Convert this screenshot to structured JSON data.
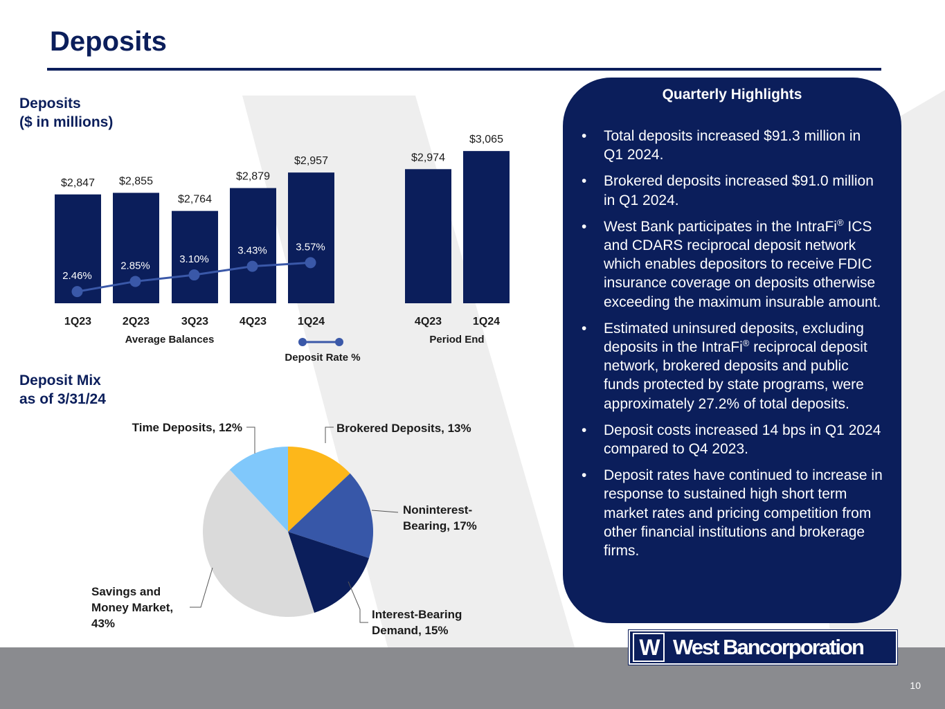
{
  "page": {
    "title": "Deposits",
    "page_number": "10"
  },
  "colors": {
    "navy": "#0b1e5b",
    "line_blue": "#3a58a8",
    "gray_band": "#8a8b8f",
    "watermark": "#eeeeee"
  },
  "deposits_section": {
    "title_line1": "Deposits",
    "title_line2": "($ in millions)"
  },
  "mix_section": {
    "title_line1": "Deposit Mix",
    "title_line2": "as of 3/31/24"
  },
  "highlights": {
    "title": "Quarterly Highlights",
    "bullet_glyph": "•",
    "registered_mark": "®",
    "items": [
      {
        "text": "Total deposits increased $91.3 million in Q1 2024."
      },
      {
        "text": "Brokered deposits increased $91.0 million in Q1 2024."
      },
      {
        "pre": "West Bank participates in the IntraFi",
        "post": " ICS and CDARS reciprocal deposit network which enables depositors to receive FDIC insurance coverage on deposits otherwise exceeding the maximum insurable amount."
      },
      {
        "pre": "Estimated uninsured deposits, excluding deposits in the IntraFi",
        "post": " reciprocal deposit network, brokered deposits and public funds protected by state programs, were approximately 27.2% of total deposits."
      },
      {
        "text": "Deposit costs increased 14 bps in Q1 2024 compared to Q4 2023."
      },
      {
        "text": "Deposit rates have continued to increase in response to sustained high short term market rates and pricing competition from other financial institutions and brokerage firms."
      }
    ]
  },
  "logo": {
    "mark": "W",
    "name": "West Bancorporation"
  },
  "chart_data": [
    {
      "type": "bar",
      "title": "Deposits ($ in millions)",
      "group_label": "Average Balances",
      "categories": [
        "1Q23",
        "2Q23",
        "3Q23",
        "4Q23",
        "1Q24"
      ],
      "values": [
        2847,
        2855,
        2764,
        2879,
        2957
      ],
      "value_labels": [
        "$2,847",
        "$2,855",
        "$2,764",
        "$2,879",
        "$2,957"
      ],
      "rate_series": {
        "name": "Deposit Rate  %",
        "type": "line",
        "values": [
          2.46,
          2.85,
          3.1,
          3.43,
          3.57
        ],
        "labels": [
          "2.46%",
          "2.85%",
          "3.10%",
          "3.43%",
          "3.57%"
        ]
      }
    },
    {
      "type": "bar",
      "group_label": "Period End",
      "categories": [
        "4Q23",
        "1Q24"
      ],
      "values": [
        2974,
        3065
      ],
      "value_labels": [
        "$2,974",
        "$3,065"
      ]
    },
    {
      "type": "pie",
      "title": "Deposit Mix as of 3/31/24",
      "slices": [
        {
          "label": "Brokered Deposits, 13%",
          "value": 13,
          "color": "#fdb71a"
        },
        {
          "label": "Noninterest-Bearing, 17%",
          "value": 17,
          "color": "#3757a8"
        },
        {
          "label": "Interest-Bearing Demand, 15%",
          "value": 15,
          "color": "#0b1e5b"
        },
        {
          "label": "Savings and Money Market, 43%",
          "value": 43,
          "color": "#dadada"
        },
        {
          "label": "Time Deposits, 12%",
          "value": 12,
          "color": "#80c8fb"
        }
      ]
    }
  ]
}
